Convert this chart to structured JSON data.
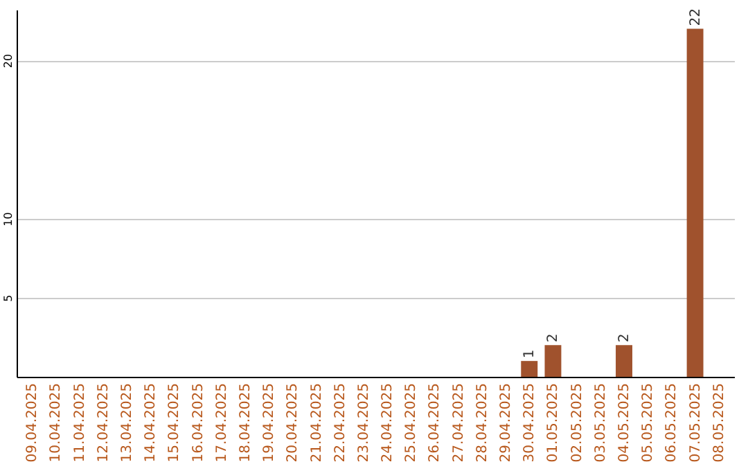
{
  "chart_data": {
    "type": "bar",
    "categories": [
      "09.04.2025",
      "10.04.2025",
      "11.04.2025",
      "12.04.2025",
      "13.04.2025",
      "14.04.2025",
      "15.04.2025",
      "16.04.2025",
      "17.04.2025",
      "18.04.2025",
      "19.04.2025",
      "20.04.2025",
      "21.04.2025",
      "22.04.2025",
      "23.04.2025",
      "24.04.2025",
      "25.04.2025",
      "26.04.2025",
      "27.04.2025",
      "28.04.2025",
      "29.04.2025",
      "30.04.2025",
      "01.05.2025",
      "02.05.2025",
      "03.05.2025",
      "04.05.2025",
      "05.05.2025",
      "06.05.2025",
      "07.05.2025",
      "08.05.2025"
    ],
    "values": [
      0,
      0,
      0,
      0,
      0,
      0,
      0,
      0,
      0,
      0,
      0,
      0,
      0,
      0,
      0,
      0,
      0,
      0,
      0,
      0,
      0,
      1,
      2,
      0,
      0,
      2,
      0,
      0,
      22,
      0
    ],
    "value_labels": [
      null,
      null,
      null,
      null,
      null,
      null,
      null,
      null,
      null,
      null,
      null,
      null,
      null,
      null,
      null,
      null,
      null,
      null,
      null,
      null,
      null,
      "1",
      "2",
      null,
      null,
      "2",
      null,
      null,
      "22",
      null
    ],
    "color": "#a0522d",
    "ylim": [
      0,
      23.2
    ],
    "yticks": [
      5,
      10,
      20
    ],
    "grid": "y"
  }
}
